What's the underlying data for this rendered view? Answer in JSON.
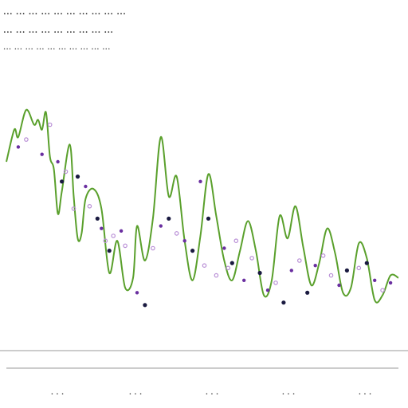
{
  "title_lines": [
    "... ... ... ... ... ... ... ... ... ...",
    "... ... ... ... ... ... ... ... ...",
    "... ... ... ... ... ... ... ... ... ..."
  ],
  "chart_data": {
    "type": "line",
    "title": "",
    "xlabel": "",
    "ylabel": "",
    "x_tick_labels": [
      "...",
      "...",
      "...",
      "...",
      "..."
    ],
    "grid": false,
    "legend": "none",
    "xlim": [
      0,
      100
    ],
    "ylim": [
      0,
      100
    ],
    "line_color": "#5aa02c",
    "marker_colors": [
      "#6a2fa0",
      "#b98fd6",
      "#1a1a40"
    ],
    "series": [
      {
        "x": [
          0,
          2,
          3,
          5,
          7,
          8,
          9,
          10,
          11,
          12,
          13,
          14,
          16,
          17,
          18,
          19,
          20,
          22,
          24,
          26,
          28,
          30,
          32,
          33,
          35,
          37,
          39,
          41,
          43,
          45,
          47,
          49,
          51,
          53,
          55,
          57,
          59,
          61,
          63,
          65,
          67,
          69,
          71,
          73,
          75,
          77,
          79,
          81,
          83,
          85,
          87,
          89,
          91,
          93,
          95,
          97,
          99
        ],
        "y": [
          70,
          83,
          80,
          91,
          85,
          87,
          83,
          90,
          72,
          67,
          49,
          58,
          77,
          56,
          39,
          41,
          55,
          59,
          51,
          25,
          38,
          19,
          23,
          44,
          30,
          47,
          80,
          56,
          64,
          38,
          22,
          40,
          65,
          48,
          30,
          22,
          34,
          46,
          34,
          16,
          22,
          48,
          39,
          52,
          35,
          20,
          29,
          43,
          33,
          17,
          19,
          37,
          31,
          14,
          16,
          24,
          23
        ]
      }
    ],
    "scatter": [
      {
        "x": 3,
        "y": 76,
        "c": 0
      },
      {
        "x": 5,
        "y": 79,
        "c": 1
      },
      {
        "x": 9,
        "y": 73,
        "c": 0
      },
      {
        "x": 11,
        "y": 85,
        "c": 1
      },
      {
        "x": 13,
        "y": 70,
        "c": 0
      },
      {
        "x": 14,
        "y": 62,
        "c": 2
      },
      {
        "x": 15,
        "y": 66,
        "c": 1
      },
      {
        "x": 17,
        "y": 51,
        "c": 1
      },
      {
        "x": 18,
        "y": 64,
        "c": 2
      },
      {
        "x": 20,
        "y": 60,
        "c": 0
      },
      {
        "x": 21,
        "y": 52,
        "c": 1
      },
      {
        "x": 23,
        "y": 47,
        "c": 2
      },
      {
        "x": 24,
        "y": 43,
        "c": 0
      },
      {
        "x": 25,
        "y": 38,
        "c": 1
      },
      {
        "x": 26,
        "y": 34,
        "c": 2
      },
      {
        "x": 27,
        "y": 40,
        "c": 1
      },
      {
        "x": 29,
        "y": 42,
        "c": 0
      },
      {
        "x": 30,
        "y": 36,
        "c": 1
      },
      {
        "x": 33,
        "y": 17,
        "c": 0
      },
      {
        "x": 35,
        "y": 12,
        "c": 2
      },
      {
        "x": 37,
        "y": 35,
        "c": 1
      },
      {
        "x": 39,
        "y": 44,
        "c": 0
      },
      {
        "x": 41,
        "y": 47,
        "c": 2
      },
      {
        "x": 43,
        "y": 41,
        "c": 1
      },
      {
        "x": 45,
        "y": 38,
        "c": 0
      },
      {
        "x": 47,
        "y": 34,
        "c": 2
      },
      {
        "x": 49,
        "y": 62,
        "c": 0
      },
      {
        "x": 50,
        "y": 28,
        "c": 1
      },
      {
        "x": 51,
        "y": 47,
        "c": 2
      },
      {
        "x": 53,
        "y": 24,
        "c": 1
      },
      {
        "x": 55,
        "y": 35,
        "c": 0
      },
      {
        "x": 56,
        "y": 27,
        "c": 1
      },
      {
        "x": 57,
        "y": 29,
        "c": 2
      },
      {
        "x": 58,
        "y": 38,
        "c": 1
      },
      {
        "x": 60,
        "y": 22,
        "c": 0
      },
      {
        "x": 62,
        "y": 31,
        "c": 1
      },
      {
        "x": 64,
        "y": 25,
        "c": 2
      },
      {
        "x": 66,
        "y": 18,
        "c": 0
      },
      {
        "x": 68,
        "y": 21,
        "c": 1
      },
      {
        "x": 70,
        "y": 13,
        "c": 2
      },
      {
        "x": 72,
        "y": 26,
        "c": 0
      },
      {
        "x": 74,
        "y": 30,
        "c": 1
      },
      {
        "x": 76,
        "y": 17,
        "c": 2
      },
      {
        "x": 78,
        "y": 28,
        "c": 0
      },
      {
        "x": 80,
        "y": 32,
        "c": 1
      },
      {
        "x": 82,
        "y": 24,
        "c": 1
      },
      {
        "x": 84,
        "y": 20,
        "c": 0
      },
      {
        "x": 86,
        "y": 26,
        "c": 2
      },
      {
        "x": 89,
        "y": 27,
        "c": 1
      },
      {
        "x": 91,
        "y": 29,
        "c": 2
      },
      {
        "x": 93,
        "y": 22,
        "c": 0
      },
      {
        "x": 95,
        "y": 18,
        "c": 1
      },
      {
        "x": 97,
        "y": 21,
        "c": 0
      }
    ]
  }
}
